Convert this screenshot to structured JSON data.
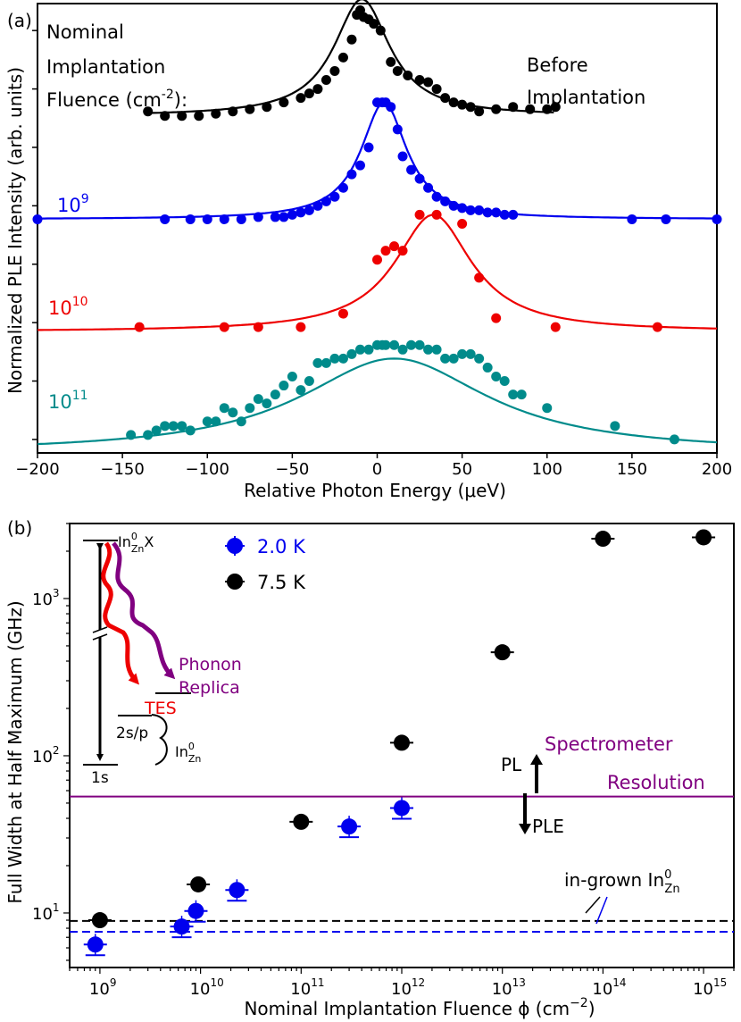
{
  "chart_data": [
    {
      "type": "scatter",
      "panel_label": "(a)",
      "xlabel": "Relative Photon Energy (μeV)",
      "ylabel": "Normalized PLE Intensity (arb. units)",
      "xlim": [
        -200,
        200
      ],
      "ylim": [
        0,
        1
      ],
      "xticks": [
        -200,
        -150,
        -100,
        -50,
        0,
        50,
        100,
        150,
        200
      ],
      "xtick_labels": [
        "−200",
        "−150",
        "−100",
        "−50",
        "0",
        "50",
        "100",
        "150",
        "200"
      ],
      "yticks": [
        0.03,
        0.16,
        0.29,
        0.42,
        0.55,
        0.68,
        0.81,
        0.94
      ],
      "annotations": {
        "nominal_lines": [
          "Nominal",
          "Implantation",
          "Fluence (cm",
          "-2",
          "):"
        ],
        "before_lines": [
          "Before",
          "Implantation"
        ]
      },
      "series": [
        {
          "name": "Before Implantation",
          "label": "",
          "color": "#000000",
          "center": -9,
          "width": 40,
          "amplitude": 0.26,
          "baseline": 0.75,
          "x": [
            -135,
            -125,
            -115,
            -105,
            -95,
            -85,
            -75,
            -65,
            -55,
            -45,
            -40,
            -35,
            -30,
            -25,
            -20,
            -15,
            -12,
            -10,
            -8,
            -5,
            -2,
            2,
            8,
            12,
            18,
            25,
            30,
            35,
            40,
            45,
            50,
            55,
            60,
            70,
            80,
            90,
            100,
            105
          ],
          "y": [
            0.76,
            0.75,
            0.75,
            0.75,
            0.755,
            0.76,
            0.765,
            0.77,
            0.78,
            0.79,
            0.8,
            0.81,
            0.83,
            0.85,
            0.88,
            0.92,
            0.975,
            0.985,
            0.97,
            0.965,
            0.955,
            0.94,
            0.87,
            0.85,
            0.84,
            0.83,
            0.825,
            0.81,
            0.79,
            0.78,
            0.775,
            0.77,
            0.76,
            0.765,
            0.77,
            0.765,
            0.765,
            0.77
          ]
        },
        {
          "name": "1e9",
          "label": "10",
          "label_sup": "9",
          "color": "#0000ee",
          "center": 4,
          "width": 33,
          "amplitude": 0.26,
          "baseline": 0.52,
          "x": [
            -200,
            -125,
            -110,
            -100,
            -90,
            -80,
            -70,
            -60,
            -55,
            -50,
            -45,
            -40,
            -35,
            -30,
            -25,
            -20,
            -15,
            -10,
            -5,
            0,
            3,
            5,
            8,
            12,
            15,
            20,
            25,
            30,
            35,
            40,
            45,
            50,
            55,
            60,
            65,
            70,
            75,
            80,
            150,
            170,
            200
          ],
          "y": [
            0.52,
            0.52,
            0.52,
            0.52,
            0.52,
            0.52,
            0.525,
            0.525,
            0.525,
            0.53,
            0.535,
            0.54,
            0.55,
            0.56,
            0.57,
            0.59,
            0.62,
            0.64,
            0.68,
            0.78,
            0.78,
            0.78,
            0.77,
            0.72,
            0.66,
            0.63,
            0.61,
            0.59,
            0.57,
            0.56,
            0.55,
            0.545,
            0.54,
            0.54,
            0.535,
            0.535,
            0.53,
            0.53,
            0.52,
            0.52,
            0.52
          ]
        },
        {
          "name": "1e10",
          "label": "10",
          "label_sup": "10",
          "color": "#ee0000",
          "center": 33,
          "width": 55,
          "amplitude": 0.26,
          "baseline": 0.27,
          "x": [
            -140,
            -90,
            -70,
            -45,
            -20,
            0,
            5,
            10,
            15,
            25,
            35,
            50,
            60,
            70,
            105,
            165
          ],
          "y": [
            0.28,
            0.28,
            0.28,
            0.28,
            0.31,
            0.43,
            0.45,
            0.46,
            0.45,
            0.53,
            0.53,
            0.51,
            0.39,
            0.3,
            0.28,
            0.28
          ]
        },
        {
          "name": "1e11",
          "label": "10",
          "label_sup": "11",
          "color": "#008b8b",
          "center": 10,
          "width": 135,
          "amplitude": 0.21,
          "baseline": 0.0,
          "x": [
            -145,
            -135,
            -130,
            -125,
            -120,
            -115,
            -110,
            -100,
            -95,
            -90,
            -85,
            -80,
            -75,
            -70,
            -65,
            -60,
            -55,
            -50,
            -45,
            -40,
            -35,
            -30,
            -25,
            -20,
            -15,
            -10,
            -5,
            0,
            3,
            5,
            10,
            15,
            20,
            25,
            30,
            35,
            40,
            45,
            50,
            55,
            60,
            65,
            70,
            75,
            80,
            85,
            100,
            140,
            175
          ],
          "y": [
            0.04,
            0.04,
            0.05,
            0.06,
            0.06,
            0.06,
            0.05,
            0.07,
            0.07,
            0.1,
            0.09,
            0.07,
            0.1,
            0.12,
            0.11,
            0.13,
            0.15,
            0.17,
            0.14,
            0.16,
            0.2,
            0.2,
            0.21,
            0.21,
            0.22,
            0.23,
            0.23,
            0.24,
            0.24,
            0.24,
            0.24,
            0.23,
            0.24,
            0.24,
            0.23,
            0.23,
            0.21,
            0.21,
            0.22,
            0.22,
            0.21,
            0.19,
            0.17,
            0.16,
            0.13,
            0.13,
            0.1,
            0.06,
            0.03
          ]
        }
      ]
    },
    {
      "type": "scatter",
      "panel_label": "(b)",
      "xlabel": "Nominal Implantation Fluence ϕ (cm",
      "xlabel_sup": "−2",
      "xlabel_tail": ")",
      "ylabel": "Full Width at Half Maximum (GHz)",
      "xscale": "log",
      "yscale": "log",
      "xlim": [
        500000000.0,
        2000000000000000.0
      ],
      "ylim": [
        4.5,
        3000
      ],
      "xticks": [
        1000000000.0,
        10000000000.0,
        100000000000.0,
        1000000000000.0,
        10000000000000.0,
        100000000000000.0,
        1000000000000000.0
      ],
      "xtick_exps": [
        "9",
        "10",
        "11",
        "12",
        "13",
        "14",
        "15"
      ],
      "yticks": [
        10,
        100,
        1000
      ],
      "ytick_exps": [
        "1",
        "2",
        "3"
      ],
      "legend": {
        "position": "upper-left",
        "entries": [
          {
            "label": "2.0 K",
            "color": "#0000ee"
          },
          {
            "label": "7.5 K",
            "color": "#000000"
          }
        ]
      },
      "series": [
        {
          "name": "2.0 K",
          "color": "#0000ee",
          "x": [
            900000000.0,
            6500000000.0,
            9000000000.0,
            23000000000.0,
            300000000000.0,
            1000000000000.0
          ],
          "y": [
            6.3,
            8.2,
            10.3,
            14.0,
            35.5,
            46.5
          ]
        },
        {
          "name": "7.5 K",
          "color": "#000000",
          "x": [
            1000000000.0,
            9500000000.0,
            100000000000.0,
            1000000000000.0,
            10000000000000.0,
            100000000000000.0,
            1000000000000000.0
          ],
          "y": [
            9.0,
            15.2,
            38.0,
            121.0,
            455.0,
            2400.0,
            2450.0
          ]
        }
      ],
      "reference_lines": [
        {
          "name": "Spectrometer Resolution",
          "y": 55,
          "color": "#800080",
          "style": "solid"
        },
        {
          "name": "in-grown 7.5 K",
          "y": 8.9,
          "color": "#000000",
          "style": "dashed"
        },
        {
          "name": "in-grown 2.0 K",
          "y": 7.6,
          "color": "#0000ee",
          "style": "dashed"
        }
      ],
      "annotations": {
        "spectrometer_line1": "Spectrometer",
        "spectrometer_line2": "Resolution",
        "pl": "PL",
        "ple": "PLE",
        "ingrown_prefix": "in-grown In",
        "ingrown_sup": "0",
        "ingrown_sub": "Zn",
        "inset": {
          "top_label": "In",
          "top_sup": "0",
          "top_sub": "Zn",
          "top_suffix": "X",
          "phonon_line1": "Phonon",
          "phonon_line2": "Replica",
          "tes": "TES",
          "two_s_p": "2s/p",
          "bottom_label": "In",
          "bottom_sup": "0",
          "bottom_sub": "Zn",
          "one_s": "1s"
        }
      }
    }
  ]
}
